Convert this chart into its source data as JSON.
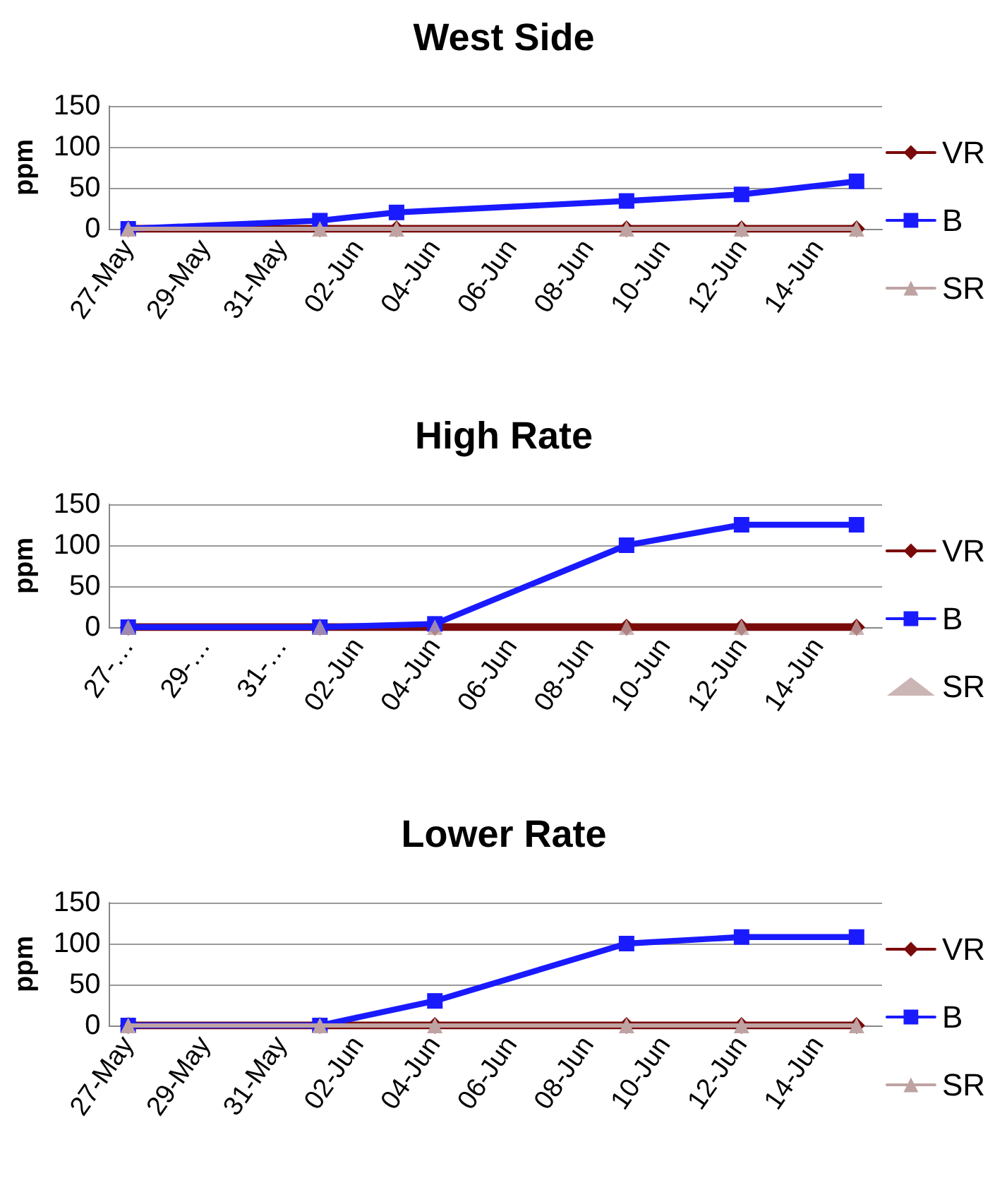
{
  "chart_data": [
    {
      "type": "line",
      "title": "West Side",
      "ylabel": "ppm",
      "x": [
        "--05-27",
        "--06-01",
        "--06-03",
        "--06-09",
        "--06-12",
        "--06-15"
      ],
      "series": [
        {
          "name": "VR",
          "color": "#7a0a0a",
          "marker": "diamond",
          "values": [
            0,
            0,
            0,
            0,
            0,
            0
          ]
        },
        {
          "name": "B",
          "color": "#1a1aff",
          "marker": "square",
          "values": [
            0,
            10,
            20,
            34,
            42,
            58
          ]
        },
        {
          "name": "SR",
          "color": "#bfa3a3",
          "marker": "triangle",
          "values": [
            0,
            0,
            0,
            0,
            0,
            0
          ]
        }
      ],
      "xlim": [
        "--05-26T12:00",
        "--06-15T16:00"
      ],
      "xticks": [
        {
          "value": "--05-27",
          "label": "27-May"
        },
        {
          "value": "--05-29",
          "label": "29-May"
        },
        {
          "value": "--05-31",
          "label": "31-May"
        },
        {
          "value": "--06-02",
          "label": "02-Jun"
        },
        {
          "value": "--06-04",
          "label": "04-Jun"
        },
        {
          "value": "--06-06",
          "label": "06-Jun"
        },
        {
          "value": "--06-08",
          "label": "08-Jun"
        },
        {
          "value": "--06-10",
          "label": "10-Jun"
        },
        {
          "value": "--06-12",
          "label": "12-Jun"
        },
        {
          "value": "--06-14",
          "label": "14-Jun"
        }
      ],
      "ylim": [
        0,
        150
      ],
      "yticks": [
        0,
        50,
        100,
        150
      ],
      "grid": "y",
      "legend": "right"
    },
    {
      "type": "line",
      "title": "High Rate",
      "ylabel": "ppm",
      "x": [
        "--05-27",
        "--06-01",
        "--06-04",
        "--06-09",
        "--06-12",
        "--06-15"
      ],
      "series": [
        {
          "name": "VR",
          "color": "#7a0a0a",
          "marker": "diamond",
          "values": [
            0,
            0,
            0,
            0,
            0,
            0
          ]
        },
        {
          "name": "B",
          "color": "#1a1aff",
          "marker": "square",
          "values": [
            0,
            0,
            4,
            100,
            125,
            125
          ]
        },
        {
          "name": "SR",
          "type": "scatter",
          "color": "#bfa3a3",
          "marker": "triangle",
          "values": [
            0,
            0,
            0,
            0,
            0,
            0
          ]
        }
      ],
      "xlim": [
        "--05-26T12:00",
        "--06-15T16:00"
      ],
      "xticks": [
        {
          "value": "--05-27",
          "label": "27-…"
        },
        {
          "value": "--05-29",
          "label": "29-…"
        },
        {
          "value": "--05-31",
          "label": "31-…"
        },
        {
          "value": "--06-02",
          "label": "02-Jun"
        },
        {
          "value": "--06-04",
          "label": "04-Jun"
        },
        {
          "value": "--06-06",
          "label": "06-Jun"
        },
        {
          "value": "--06-08",
          "label": "08-Jun"
        },
        {
          "value": "--06-10",
          "label": "10-Jun"
        },
        {
          "value": "--06-12",
          "label": "12-Jun"
        },
        {
          "value": "--06-14",
          "label": "14-Jun"
        }
      ],
      "ylim": [
        0,
        150
      ],
      "yticks": [
        0,
        50,
        100,
        150
      ],
      "grid": "y",
      "legend": "right"
    },
    {
      "type": "line",
      "title": "Lower Rate",
      "ylabel": "ppm",
      "x": [
        "--05-27",
        "--06-01",
        "--06-04",
        "--06-09",
        "--06-12",
        "--06-15"
      ],
      "series": [
        {
          "name": "VR",
          "color": "#7a0a0a",
          "marker": "diamond",
          "values": [
            0,
            0,
            0,
            0,
            0,
            0
          ]
        },
        {
          "name": "B",
          "color": "#1a1aff",
          "marker": "square",
          "values": [
            0,
            0,
            30,
            100,
            108,
            108
          ]
        },
        {
          "name": "SR",
          "color": "#bfa3a3",
          "marker": "triangle",
          "values": [
            0,
            0,
            0,
            0,
            0,
            0
          ]
        }
      ],
      "xlim": [
        "--05-26T12:00",
        "--06-15T16:00"
      ],
      "xticks": [
        {
          "value": "--05-27",
          "label": "27-May"
        },
        {
          "value": "--05-29",
          "label": "29-May"
        },
        {
          "value": "--05-31",
          "label": "31-May"
        },
        {
          "value": "--06-02",
          "label": "02-Jun"
        },
        {
          "value": "--06-04",
          "label": "04-Jun"
        },
        {
          "value": "--06-06",
          "label": "06-Jun"
        },
        {
          "value": "--06-08",
          "label": "08-Jun"
        },
        {
          "value": "--06-10",
          "label": "10-Jun"
        },
        {
          "value": "--06-12",
          "label": "12-Jun"
        },
        {
          "value": "--06-14",
          "label": "14-Jun"
        }
      ],
      "ylim": [
        0,
        150
      ],
      "yticks": [
        0,
        50,
        100,
        150
      ],
      "grid": "y",
      "legend": "right"
    }
  ]
}
